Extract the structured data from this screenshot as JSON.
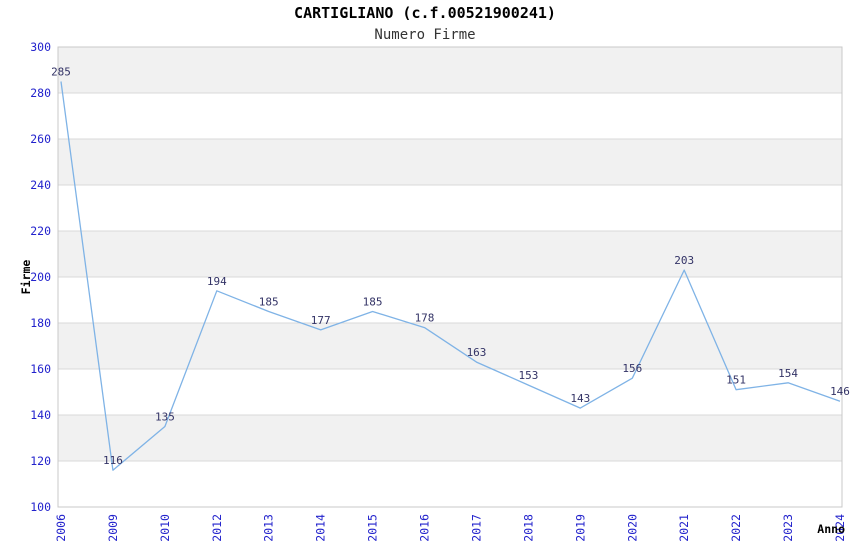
{
  "header": {
    "title": "CARTIGLIANO (c.f.00521900241)",
    "subtitle": "Numero Firme"
  },
  "chart_data": {
    "type": "line",
    "title": "CARTIGLIANO (c.f.00521900241)",
    "subtitle": "Numero Firme",
    "xlabel": "Anno",
    "ylabel": "Firme",
    "categories": [
      "2006",
      "2009",
      "2010",
      "2012",
      "2013",
      "2014",
      "2015",
      "2016",
      "2017",
      "2018",
      "2019",
      "2020",
      "2021",
      "2022",
      "2023",
      "2024"
    ],
    "values": [
      285,
      116,
      135,
      194,
      185,
      177,
      185,
      178,
      163,
      153,
      143,
      156,
      203,
      151,
      154,
      146
    ],
    "ylim": [
      100,
      300
    ],
    "ytick_step": 20,
    "grid": "horizontal-gridlines-with-alternating-bands",
    "legend": "none",
    "colors": {
      "line": "#7fb3e6",
      "data_label": "#333366",
      "tick_label": "#2222cc",
      "axis_title": "#000000",
      "band_fill": "#f1f1f1",
      "gridline": "#d9d9d9",
      "plot_border": "#c9c9c9",
      "background": "#ffffff"
    }
  }
}
